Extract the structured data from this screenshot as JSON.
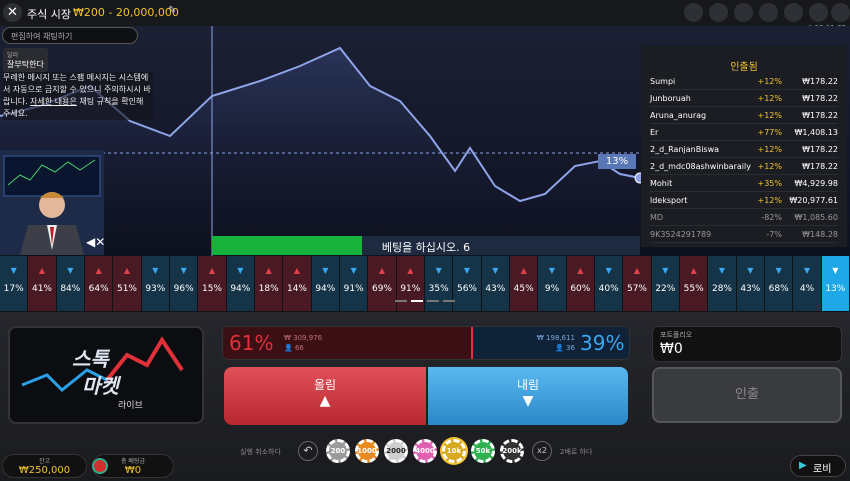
{
  "header": {
    "title": "주식 시장",
    "limits": "₩200 - 20,000,000",
    "time": "# 06:11:33"
  },
  "chat": {
    "placeholder": "편집하여 채팅하기",
    "dealer_label": "딜러",
    "dealer_message": "잘부탁한다",
    "notice_before": "무례한 메시지 또는 스팸 메시지는 시스템에서 자동으로 금지할 수 있으니 주의하시시 바랍니다. ",
    "notice_link": "자세한 내용은",
    "notice_after": " 채팅 규칙을 확인해 주세요."
  },
  "market": {
    "current": "13%",
    "status": "베팅을 하십시오. 6"
  },
  "cashouts": {
    "title": "인출됨",
    "rows": [
      [
        "Sumpi",
        "+12%",
        "₩178.22"
      ],
      [
        "Junboruah",
        "+12%",
        "₩178.22"
      ],
      [
        "Aruna_anurag",
        "+12%",
        "₩178.22"
      ],
      [
        "Er",
        "+77%",
        "₩1,408.13"
      ],
      [
        "2_d_RanjanBiswa",
        "+12%",
        "₩178.22"
      ],
      [
        "2_d_mdc08ashwinbaraily",
        "+12%",
        "₩178.22"
      ],
      [
        "Mohit",
        "+35%",
        "₩4,929.98"
      ],
      [
        "ldeksport",
        "+12%",
        "₩20,977.61"
      ],
      [
        "MD",
        "-82%",
        "₩1,085.60"
      ],
      [
        "9K3524291789",
        "-7%",
        "₩148.28"
      ]
    ]
  },
  "history": [
    {
      "label": "17%",
      "direction": "down"
    },
    {
      "label": "41%",
      "direction": "up"
    },
    {
      "label": "84%",
      "direction": "down"
    },
    {
      "label": "64%",
      "direction": "up"
    },
    {
      "label": "51%",
      "direction": "up"
    },
    {
      "label": "93%",
      "direction": "down"
    },
    {
      "label": "96%",
      "direction": "down"
    },
    {
      "label": "15%",
      "direction": "up"
    },
    {
      "label": "94%",
      "direction": "down"
    },
    {
      "label": "18%",
      "direction": "up"
    },
    {
      "label": "14%",
      "direction": "up"
    },
    {
      "label": "94%",
      "direction": "down"
    },
    {
      "label": "91%",
      "direction": "down"
    },
    {
      "label": "69%",
      "direction": "up"
    },
    {
      "label": "91%",
      "direction": "up"
    },
    {
      "label": "35%",
      "direction": "down"
    },
    {
      "label": "56%",
      "direction": "down"
    },
    {
      "label": "43%",
      "direction": "down"
    },
    {
      "label": "45%",
      "direction": "up"
    },
    {
      "label": "9%",
      "direction": "down"
    },
    {
      "label": "60%",
      "direction": "up"
    },
    {
      "label": "40%",
      "direction": "down"
    },
    {
      "label": "57%",
      "direction": "up"
    },
    {
      "label": "22%",
      "direction": "down"
    },
    {
      "label": "55%",
      "direction": "up"
    },
    {
      "label": "28%",
      "direction": "down"
    },
    {
      "label": "43%",
      "direction": "down"
    },
    {
      "label": "68%",
      "direction": "down"
    },
    {
      "label": "4%",
      "direction": "down"
    },
    {
      "label": "13%",
      "direction": "down"
    }
  ],
  "logo": {
    "line1": "스톡",
    "line2": "마켓",
    "line3": "라이브"
  },
  "bets": {
    "up_percent": "61%",
    "up_amount": "₩ 309,976",
    "up_players": "66",
    "down_amount": "₩ 198,611",
    "down_players": "36",
    "down_percent": "39%",
    "up_button": "올림",
    "down_button": "내림"
  },
  "portfolio": {
    "title": "포트폴리오",
    "value": "₩0",
    "cashout_button": "인출"
  },
  "balance": {
    "label": "잔고",
    "value": "₩250,000"
  },
  "total_bet": {
    "label": "총 베팅금",
    "value": "₩0"
  },
  "controls": {
    "undo": "실행 취소하다",
    "chips": [
      "200",
      "1000",
      "2000",
      "4000",
      "10k",
      "50k",
      "200k"
    ],
    "double": "x2",
    "double_label": "2배로 하다",
    "lobby": "로비"
  }
}
